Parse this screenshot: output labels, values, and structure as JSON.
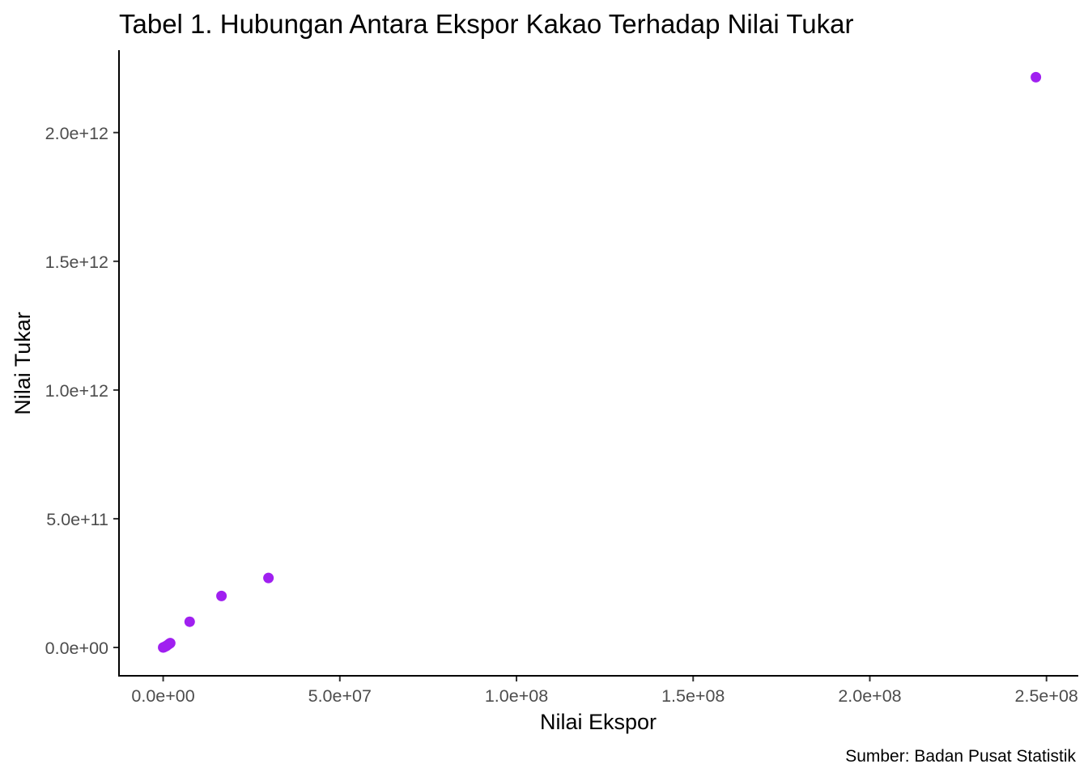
{
  "chart_data": {
    "type": "scatter",
    "title": "Tabel 1. Hubungan Antara Ekspor Kakao Terhadap Nilai Tukar",
    "xlabel": "Nilai Ekspor",
    "ylabel": "Nilai Tukar",
    "caption": "Sumber: Badan Pusat Statistik",
    "xlim": [
      -12500000,
      259000000
    ],
    "ylim": [
      -110000000000,
      2320000000000
    ],
    "x_ticks": [
      0,
      50000000,
      100000000,
      150000000,
      200000000,
      250000000
    ],
    "x_tick_labels": [
      "0.0e+00",
      "5.0e+07",
      "1.0e+08",
      "1.5e+08",
      "2.0e+08",
      "2.5e+08"
    ],
    "y_ticks": [
      0,
      500000000000,
      1000000000000,
      1500000000000,
      2000000000000
    ],
    "y_tick_labels": [
      "0.0e+00",
      "5.0e+11",
      "1.0e+12",
      "1.5e+12",
      "2.0e+12"
    ],
    "grid": false,
    "point_color": "#A020F0",
    "points": [
      {
        "x": 0,
        "y": 0
      },
      {
        "x": 200000,
        "y": 1000000000
      },
      {
        "x": 500000,
        "y": 3000000000
      },
      {
        "x": 900000,
        "y": 6000000000
      },
      {
        "x": 1300000,
        "y": 10000000000
      },
      {
        "x": 1700000,
        "y": 14000000000
      },
      {
        "x": 2000000,
        "y": 17000000000
      },
      {
        "x": 7500000,
        "y": 100000000000
      },
      {
        "x": 16500000,
        "y": 200000000000
      },
      {
        "x": 29800000,
        "y": 270000000000
      },
      {
        "x": 247000000,
        "y": 2215000000000
      }
    ]
  }
}
